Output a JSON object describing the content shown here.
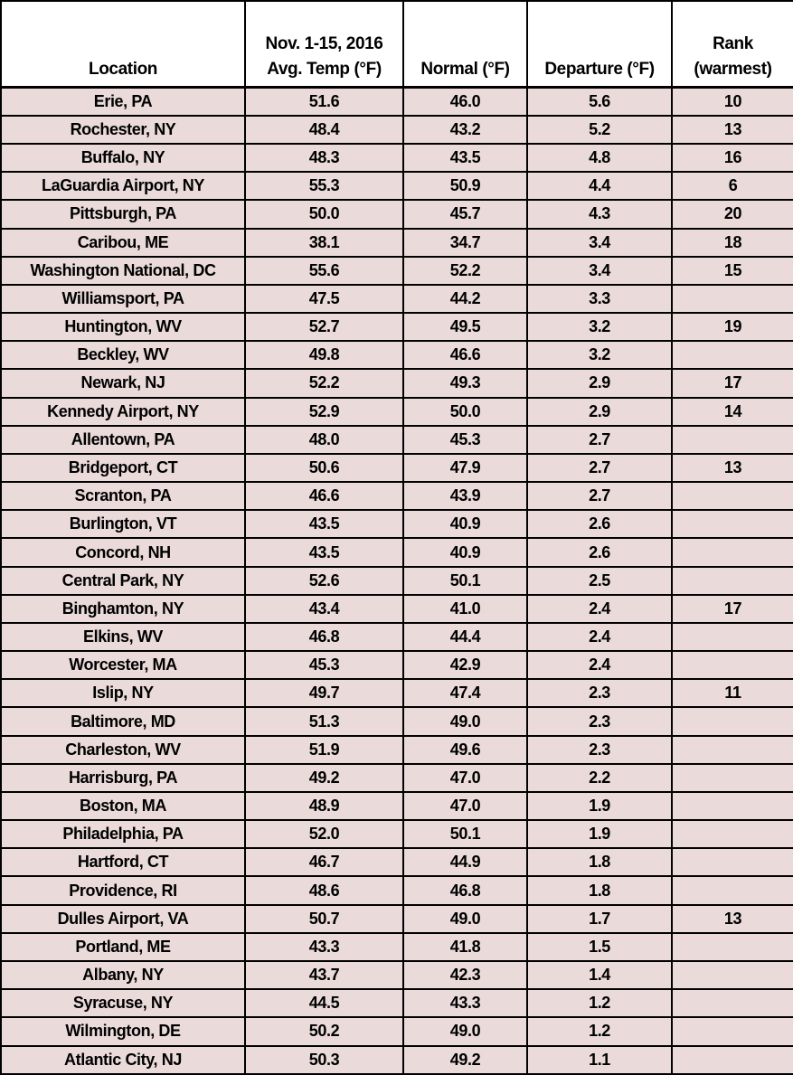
{
  "chart_data": {
    "type": "table",
    "columns": [
      {
        "id": "location",
        "header": "Location"
      },
      {
        "id": "avg-temp",
        "header": "Nov. 1-15, 2016\nAvg. Temp (°F)"
      },
      {
        "id": "normal",
        "header": "Normal (°F)"
      },
      {
        "id": "departure",
        "header": "Departure (°F)"
      },
      {
        "id": "rank",
        "header": "Rank\n(warmest)"
      }
    ],
    "rows": [
      [
        "Erie, PA",
        "51.6",
        "46.0",
        "5.6",
        "10"
      ],
      [
        "Rochester, NY",
        "48.4",
        "43.2",
        "5.2",
        "13"
      ],
      [
        "Buffalo, NY",
        "48.3",
        "43.5",
        "4.8",
        "16"
      ],
      [
        "LaGuardia Airport, NY",
        "55.3",
        "50.9",
        "4.4",
        "6"
      ],
      [
        "Pittsburgh, PA",
        "50.0",
        "45.7",
        "4.3",
        "20"
      ],
      [
        "Caribou, ME",
        "38.1",
        "34.7",
        "3.4",
        "18"
      ],
      [
        "Washington National, DC",
        "55.6",
        "52.2",
        "3.4",
        "15"
      ],
      [
        "Williamsport, PA",
        "47.5",
        "44.2",
        "3.3",
        ""
      ],
      [
        "Huntington, WV",
        "52.7",
        "49.5",
        "3.2",
        "19"
      ],
      [
        "Beckley, WV",
        "49.8",
        "46.6",
        "3.2",
        ""
      ],
      [
        "Newark, NJ",
        "52.2",
        "49.3",
        "2.9",
        "17"
      ],
      [
        "Kennedy Airport, NY",
        "52.9",
        "50.0",
        "2.9",
        "14"
      ],
      [
        "Allentown, PA",
        "48.0",
        "45.3",
        "2.7",
        ""
      ],
      [
        "Bridgeport, CT",
        "50.6",
        "47.9",
        "2.7",
        "13"
      ],
      [
        "Scranton, PA",
        "46.6",
        "43.9",
        "2.7",
        ""
      ],
      [
        "Burlington, VT",
        "43.5",
        "40.9",
        "2.6",
        ""
      ],
      [
        "Concord, NH",
        "43.5",
        "40.9",
        "2.6",
        ""
      ],
      [
        "Central Park, NY",
        "52.6",
        "50.1",
        "2.5",
        ""
      ],
      [
        "Binghamton, NY",
        "43.4",
        "41.0",
        "2.4",
        "17"
      ],
      [
        "Elkins, WV",
        "46.8",
        "44.4",
        "2.4",
        ""
      ],
      [
        "Worcester, MA",
        "45.3",
        "42.9",
        "2.4",
        ""
      ],
      [
        "Islip, NY",
        "49.7",
        "47.4",
        "2.3",
        "11"
      ],
      [
        "Baltimore, MD",
        "51.3",
        "49.0",
        "2.3",
        ""
      ],
      [
        "Charleston, WV",
        "51.9",
        "49.6",
        "2.3",
        ""
      ],
      [
        "Harrisburg, PA",
        "49.2",
        "47.0",
        "2.2",
        ""
      ],
      [
        "Boston, MA",
        "48.9",
        "47.0",
        "1.9",
        ""
      ],
      [
        "Philadelphia, PA",
        "52.0",
        "50.1",
        "1.9",
        ""
      ],
      [
        "Hartford, CT",
        "46.7",
        "44.9",
        "1.8",
        ""
      ],
      [
        "Providence, RI",
        "48.6",
        "46.8",
        "1.8",
        ""
      ],
      [
        "Dulles Airport, VA",
        "50.7",
        "49.0",
        "1.7",
        "13"
      ],
      [
        "Portland, ME",
        "43.3",
        "41.8",
        "1.5",
        ""
      ],
      [
        "Albany, NY",
        "43.7",
        "42.3",
        "1.4",
        ""
      ],
      [
        "Syracuse, NY",
        "44.5",
        "43.3",
        "1.2",
        ""
      ],
      [
        "Wilmington, DE",
        "50.2",
        "49.0",
        "1.2",
        ""
      ],
      [
        "Atlantic City, NJ",
        "50.3",
        "49.2",
        "1.1",
        ""
      ]
    ],
    "layout": {
      "header_rows": 1,
      "grid": true,
      "legend_position": "none"
    }
  },
  "style": {
    "header_bg": "#ffffff",
    "row_bg": "#eadada",
    "border_color": "#000000",
    "text_color": "#000000"
  }
}
